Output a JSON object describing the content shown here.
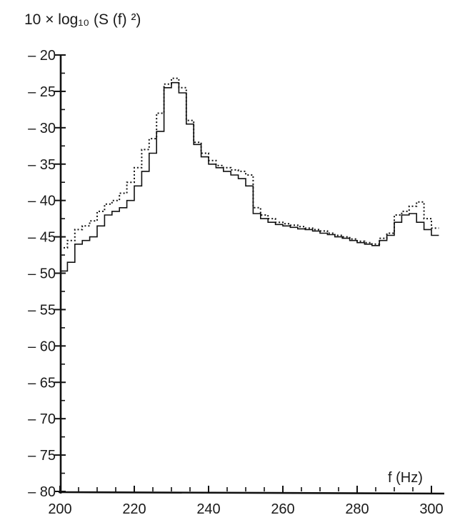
{
  "chart_data": {
    "type": "line",
    "step": true,
    "title": "",
    "ylabel": "10 × log₁₀ (S (f) ²)",
    "xlabel": "f (Hz)",
    "xlim": [
      200,
      300
    ],
    "ylim": [
      -80,
      -20
    ],
    "x_ticks": [
      200,
      220,
      240,
      260,
      280,
      300
    ],
    "x_tick_labels": [
      "200",
      "220",
      "240",
      "260",
      "280",
      "300"
    ],
    "y_ticks": [
      -20,
      -25,
      -30,
      -35,
      -40,
      -45,
      -50,
      -55,
      -60,
      -65,
      -70,
      -75,
      -80
    ],
    "y_tick_labels": [
      "– 20",
      "– 25",
      "– 30",
      "– 35",
      "– 40",
      "– 45",
      "– 50",
      "– 55",
      "– 60",
      "– 65",
      "– 70",
      "– 75",
      "– 80"
    ],
    "grid": false,
    "legend": "none",
    "series": [
      {
        "style": "solid",
        "color": "#111111",
        "x": [
          200,
          202,
          204,
          206,
          208,
          210,
          212,
          214,
          216,
          218,
          220,
          222,
          224,
          226,
          228,
          230,
          232,
          234,
          236,
          238,
          240,
          242,
          244,
          246,
          248,
          250,
          252,
          254,
          256,
          258,
          260,
          262,
          264,
          266,
          268,
          270,
          272,
          274,
          276,
          278,
          280,
          282,
          284,
          286,
          288,
          290,
          292,
          294,
          296,
          298,
          300,
          302
        ],
        "y": [
          -49.7,
          -48.5,
          -46.0,
          -45.5,
          -45.0,
          -43.5,
          -42.0,
          -41.5,
          -41.0,
          -40.0,
          -38.0,
          -36.0,
          -33.5,
          -30.5,
          -24.5,
          -23.8,
          -25.2,
          -29.5,
          -32.3,
          -34.0,
          -35.0,
          -35.5,
          -36.0,
          -36.5,
          -37.0,
          -38.0,
          -41.8,
          -42.5,
          -43.0,
          -43.3,
          -43.5,
          -43.7,
          -43.9,
          -44.0,
          -44.2,
          -44.5,
          -44.7,
          -45.0,
          -45.2,
          -45.5,
          -45.8,
          -46.0,
          -46.2,
          -45.5,
          -44.8,
          -43.0,
          -42.0,
          -41.8,
          -43.0,
          -44.0,
          -44.8,
          -44.8
        ]
      },
      {
        "style": "dotted",
        "color": "#111111",
        "x": [
          200,
          202,
          204,
          206,
          208,
          210,
          212,
          214,
          216,
          218,
          220,
          222,
          224,
          226,
          228,
          230,
          232,
          234,
          236,
          238,
          240,
          242,
          244,
          246,
          248,
          250,
          252,
          254,
          256,
          258,
          260,
          262,
          264,
          266,
          268,
          270,
          272,
          274,
          276,
          278,
          280,
          282,
          284,
          286,
          288,
          290,
          292,
          294,
          296,
          298,
          300,
          302
        ],
        "y": [
          -46.5,
          -45.5,
          -44.0,
          -43.5,
          -42.8,
          -41.5,
          -40.5,
          -40.0,
          -39.0,
          -37.5,
          -35.5,
          -33.0,
          -31.5,
          -28.0,
          -24.0,
          -23.2,
          -24.5,
          -29.0,
          -32.0,
          -33.5,
          -34.5,
          -35.2,
          -35.5,
          -35.8,
          -36.0,
          -36.5,
          -41.0,
          -42.0,
          -42.5,
          -43.0,
          -43.2,
          -43.4,
          -43.6,
          -43.8,
          -44.0,
          -44.2,
          -44.5,
          -44.8,
          -45.0,
          -45.3,
          -45.6,
          -45.8,
          -46.0,
          -45.2,
          -44.5,
          -42.0,
          -41.5,
          -40.8,
          -40.2,
          -42.5,
          -43.8,
          -43.8
        ]
      }
    ]
  }
}
